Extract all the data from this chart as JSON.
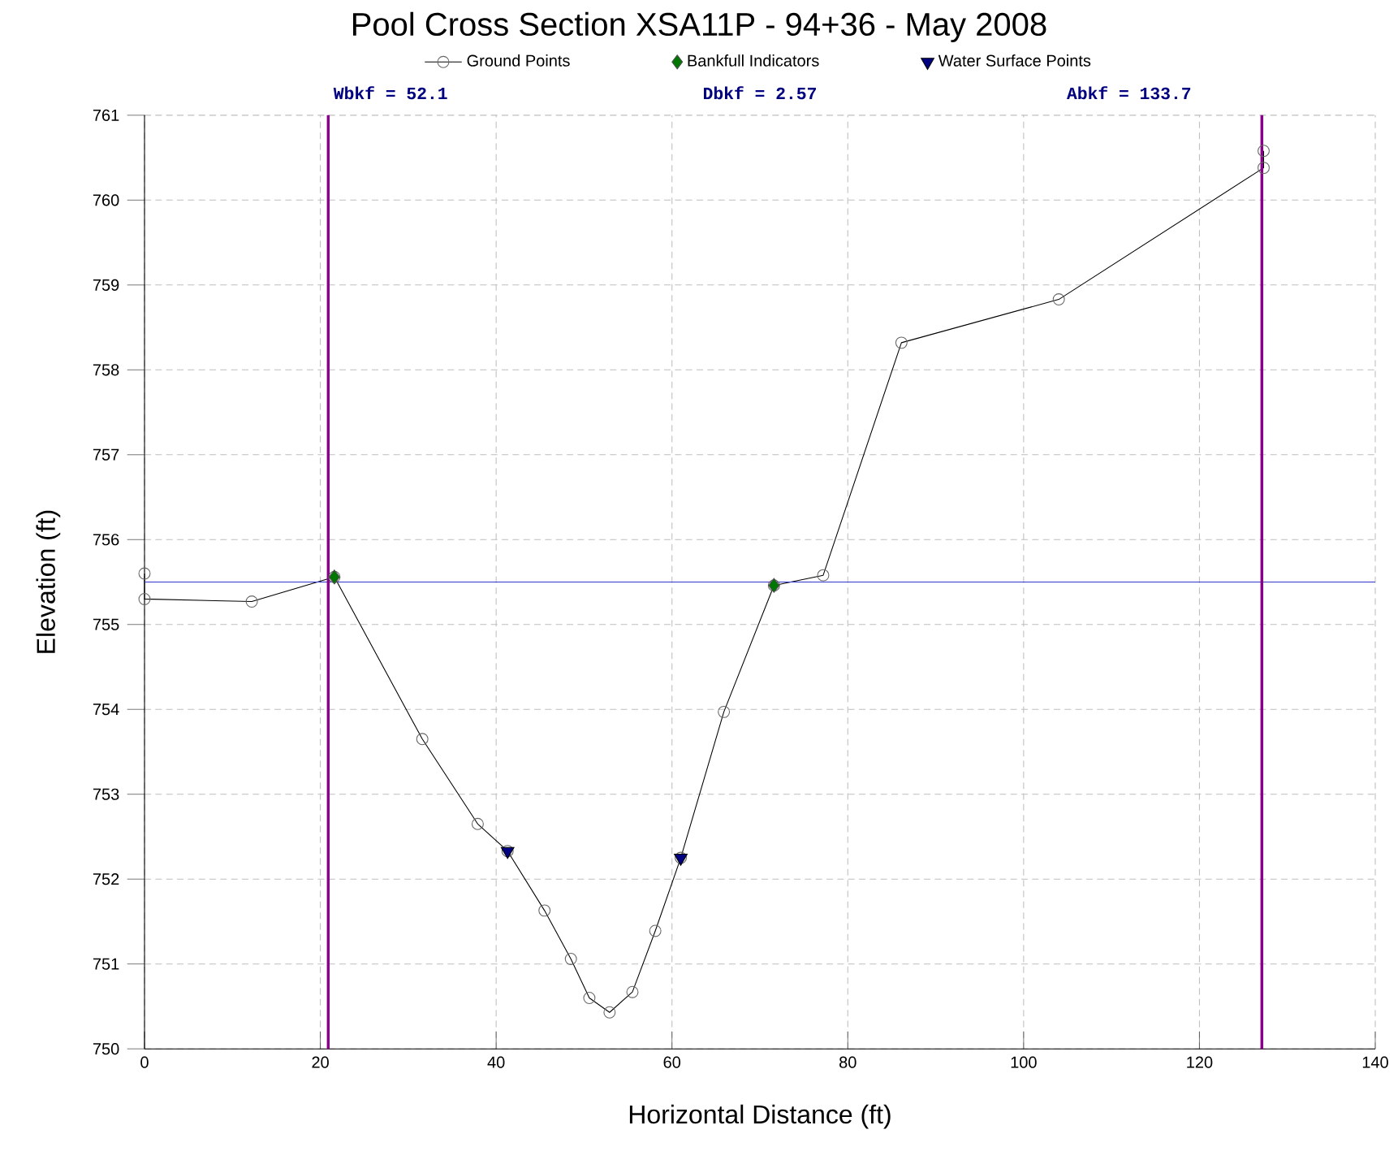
{
  "chart_data": {
    "type": "line",
    "title": "Pool Cross Section XSA11P - 94+36 - May 2008",
    "xlabel": "Horizontal Distance (ft)",
    "ylabel": "Elevation (ft)",
    "annotations": [
      "Wbkf = 52.1",
      "Dbkf = 2.57",
      "Abkf = 133.7"
    ],
    "series": [
      {
        "name": "Ground Points",
        "marker": "circle",
        "color": "#000000",
        "x": [
          0,
          0,
          12.2,
          21.6,
          31.6,
          37.9,
          41.3,
          45.5,
          48.5,
          50.6,
          52.9,
          55.5,
          58.1,
          61.0,
          65.9,
          71.6,
          77.2,
          86.1,
          104.0,
          127.3,
          127.3
        ],
        "values": [
          755.6,
          755.3,
          755.27,
          755.56,
          753.65,
          752.65,
          752.33,
          751.63,
          751.06,
          750.6,
          750.43,
          750.67,
          751.39,
          752.25,
          753.97,
          755.46,
          755.58,
          758.32,
          758.83,
          760.38,
          760.58
        ]
      },
      {
        "name": "Bankfull Indicators",
        "type": "scatter",
        "marker": "diamond",
        "color": "#007700",
        "x": [
          21.6,
          71.6
        ],
        "values": [
          755.56,
          755.46
        ]
      },
      {
        "name": "Water Surface Points",
        "type": "scatter",
        "marker": "triangle",
        "color": "#000080",
        "x": [
          41.3,
          61.0
        ],
        "values": [
          752.33,
          752.25
        ]
      }
    ],
    "xlim": [
      0,
      140
    ],
    "xticks": [
      0,
      20,
      40,
      60,
      80,
      100,
      120,
      140
    ],
    "ylim": [
      750,
      761
    ],
    "yticks": [
      750,
      751,
      752,
      753,
      754,
      755,
      756,
      757,
      758,
      759,
      760,
      761
    ],
    "ref_lines": [
      {
        "axis": "y",
        "value": 755.5,
        "color": "#3333cc"
      },
      {
        "axis": "x",
        "value": 20.9,
        "color": "#880088"
      },
      {
        "axis": "x",
        "value": 127.1,
        "color": "#880088"
      }
    ],
    "grid": true,
    "legend": "top"
  }
}
